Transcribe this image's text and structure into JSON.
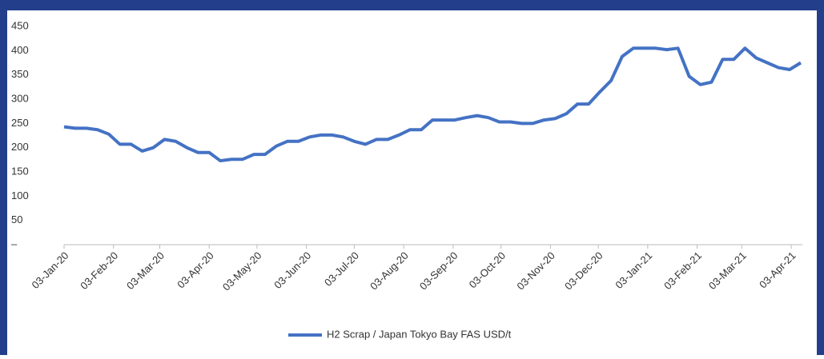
{
  "chart_data": {
    "type": "line",
    "x": [
      "2020-01-03",
      "2020-01-10",
      "2020-01-17",
      "2020-01-24",
      "2020-01-31",
      "2020-02-07",
      "2020-02-14",
      "2020-02-21",
      "2020-02-28",
      "2020-03-06",
      "2020-03-13",
      "2020-03-20",
      "2020-03-27",
      "2020-04-03",
      "2020-04-10",
      "2020-04-17",
      "2020-04-24",
      "2020-05-01",
      "2020-05-08",
      "2020-05-15",
      "2020-05-22",
      "2020-05-29",
      "2020-06-05",
      "2020-06-12",
      "2020-06-19",
      "2020-06-26",
      "2020-07-03",
      "2020-07-10",
      "2020-07-17",
      "2020-07-24",
      "2020-07-31",
      "2020-08-07",
      "2020-08-14",
      "2020-08-21",
      "2020-08-28",
      "2020-09-04",
      "2020-09-11",
      "2020-09-18",
      "2020-09-25",
      "2020-10-02",
      "2020-10-09",
      "2020-10-16",
      "2020-10-23",
      "2020-10-30",
      "2020-11-06",
      "2020-11-13",
      "2020-11-20",
      "2020-11-27",
      "2020-12-04",
      "2020-12-11",
      "2020-12-18",
      "2020-12-25",
      "2021-01-01",
      "2021-01-08",
      "2021-01-15",
      "2021-01-22",
      "2021-01-29",
      "2021-02-05",
      "2021-02-12",
      "2021-02-19",
      "2021-02-26",
      "2021-03-05",
      "2021-03-12",
      "2021-03-19",
      "2021-03-26",
      "2021-04-02",
      "2021-04-09"
    ],
    "series": [
      {
        "name": "H2 Scrap / Japan Tokyo Bay FAS USD/t",
        "color": "#4472c4",
        "values": [
          243,
          240,
          240,
          237,
          228,
          207,
          207,
          193,
          200,
          217,
          213,
          200,
          190,
          190,
          173,
          176,
          176,
          186,
          186,
          203,
          213,
          213,
          222,
          226,
          226,
          222,
          213,
          207,
          217,
          217,
          226,
          237,
          237,
          257,
          257,
          257,
          262,
          266,
          262,
          253,
          253,
          250,
          250,
          257,
          260,
          270,
          290,
          290,
          315,
          338,
          388,
          405,
          405,
          405,
          402,
          405,
          347,
          330,
          335,
          382,
          382,
          405,
          385,
          375,
          365,
          361,
          375
        ]
      }
    ],
    "xlim": [
      "2020-01-03",
      "2021-04-09"
    ],
    "xticks": [
      {
        "value": "2020-01-03",
        "label": "03-Jan-20"
      },
      {
        "value": "2020-02-03",
        "label": "03-Feb-20"
      },
      {
        "value": "2020-03-03",
        "label": "03-Mar-20"
      },
      {
        "value": "2020-04-03",
        "label": "03-Apr-20"
      },
      {
        "value": "2020-05-03",
        "label": "03-May-20"
      },
      {
        "value": "2020-06-03",
        "label": "03-Jun-20"
      },
      {
        "value": "2020-07-03",
        "label": "03-Jul-20"
      },
      {
        "value": "2020-08-03",
        "label": "03-Aug-20"
      },
      {
        "value": "2020-09-03",
        "label": "03-Sep-20"
      },
      {
        "value": "2020-10-03",
        "label": "03-Oct-20"
      },
      {
        "value": "2020-11-03",
        "label": "03-Nov-20"
      },
      {
        "value": "2020-12-03",
        "label": "03-Dec-20"
      },
      {
        "value": "2021-01-03",
        "label": "03-Jan-21"
      },
      {
        "value": "2021-02-03",
        "label": "03-Feb-21"
      },
      {
        "value": "2021-03-03",
        "label": "03-Mar-21"
      },
      {
        "value": "2021-04-03",
        "label": "03-Apr-21"
      }
    ],
    "ylim": [
      0,
      450
    ],
    "yticks": [
      {
        "value": 0,
        "label": "–"
      },
      50,
      100,
      150,
      200,
      250,
      300,
      350,
      400,
      450
    ],
    "legend": "bottom"
  }
}
